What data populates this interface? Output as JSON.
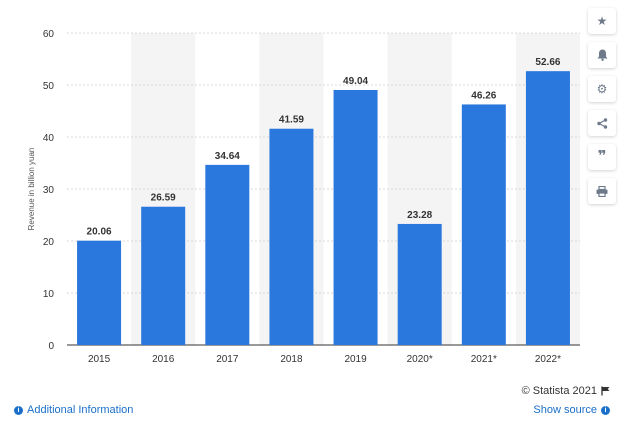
{
  "chart_data": {
    "type": "bar",
    "categories": [
      "2015",
      "2016",
      "2017",
      "2018",
      "2019",
      "2020*",
      "2021*",
      "2022*"
    ],
    "values": [
      20.06,
      26.59,
      34.64,
      41.59,
      49.04,
      23.28,
      46.26,
      52.66
    ],
    "value_labels": [
      "20.06",
      "26.59",
      "34.64",
      "41.59",
      "49.04",
      "23.28",
      "46.26",
      "52.66"
    ],
    "title": "",
    "xlabel": "",
    "ylabel": "Revenue in billion yuan",
    "ylim": [
      0,
      60
    ],
    "yticks": [
      0,
      10,
      20,
      30,
      40,
      50,
      60
    ],
    "ytick_labels": [
      "0",
      "10",
      "20",
      "30",
      "40",
      "50",
      "60"
    ],
    "grid": true,
    "bar_color": "#2a77dd",
    "band_color": "#f4f4f4"
  },
  "footer": {
    "copyright": "© Statista 2021",
    "additional_info": "Additional Information",
    "show_source": "Show source"
  },
  "toolbar": {
    "icons": [
      "star-icon",
      "bell-icon",
      "gear-icon",
      "share-icon",
      "quote-icon",
      "print-icon"
    ]
  }
}
